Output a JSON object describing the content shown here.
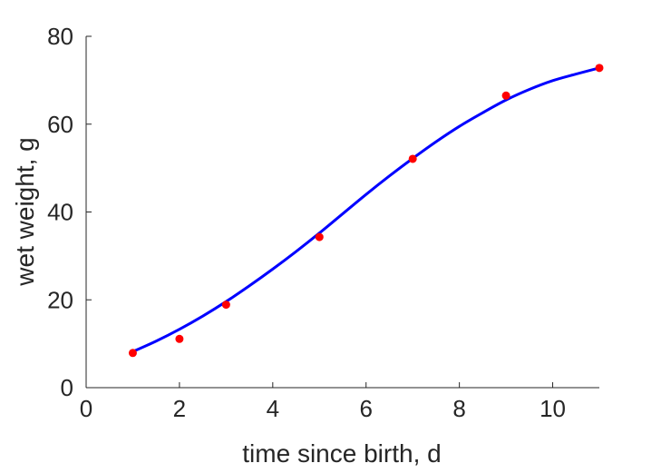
{
  "chart_data": {
    "type": "scatter",
    "title": "",
    "xlabel": "time since birth, d",
    "ylabel": "wet weight, g",
    "xlim": [
      0,
      11
    ],
    "ylim": [
      0,
      80
    ],
    "xticks": [
      0,
      2,
      4,
      6,
      8,
      10
    ],
    "yticks": [
      0,
      20,
      40,
      60,
      80
    ],
    "grid": false,
    "legend": "none",
    "series": [
      {
        "kind": "points",
        "color": "#ff0000",
        "x": [
          1,
          2,
          3,
          5,
          7,
          9,
          11
        ],
        "y": [
          7.9,
          11.1,
          18.9,
          34.3,
          52.1,
          66.5,
          72.8
        ]
      },
      {
        "kind": "fit-line",
        "color": "#0000ff",
        "x": [
          1,
          1.5,
          2,
          2.5,
          3,
          3.5,
          4,
          4.5,
          5,
          5.5,
          6,
          6.5,
          7,
          7.5,
          8,
          8.5,
          9,
          9.5,
          10,
          10.5,
          11
        ],
        "y": [
          8.2,
          10.6,
          13.3,
          16.3,
          19.6,
          23.2,
          27.0,
          31.0,
          35.2,
          39.6,
          44.0,
          48.2,
          52.2,
          56.0,
          59.5,
          62.6,
          65.5,
          67.9,
          69.9,
          71.4,
          72.8
        ]
      }
    ]
  }
}
